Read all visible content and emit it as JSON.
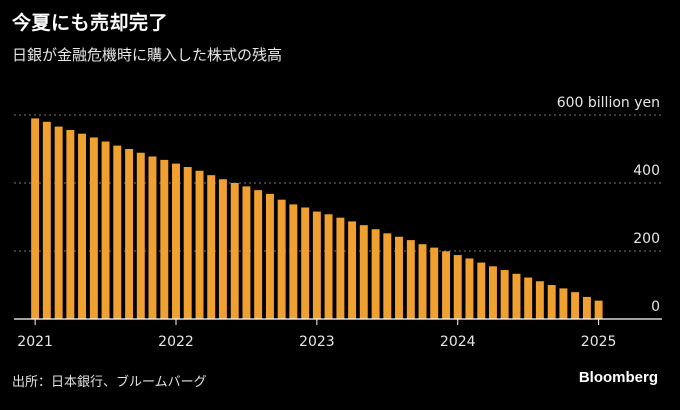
{
  "title": "今夏にも売却完了",
  "subtitle": "日銀が金融危機時に購入した株式の残高",
  "source": "出所：日本銀行、ブルームバーグ",
  "brand": "Bloomberg",
  "colors": {
    "bar": "#f0a030",
    "background": "#000000",
    "grid": "#777777",
    "axis": "#ffffff",
    "text": "#ffffff"
  },
  "chart_data": {
    "type": "bar",
    "unit_label": "600 billion yen",
    "y_tick_labels": [
      "0",
      "200",
      "400",
      "600 billion yen"
    ],
    "y_ticks": [
      0,
      200,
      400,
      600
    ],
    "ylim": [
      0,
      600
    ],
    "x_tick_labels": [
      "2021",
      "2022",
      "2023",
      "2024",
      "2025"
    ],
    "x_ticks": [
      2021,
      2022,
      2023,
      2024,
      2025
    ],
    "xlim": [
      2020.85,
      2025.45
    ],
    "grid": true,
    "series": [
      {
        "x": [
          2021.0,
          2021.083,
          2021.167,
          2021.25,
          2021.333,
          2021.417,
          2021.5,
          2021.583,
          2021.667,
          2021.75,
          2021.833,
          2021.917,
          2022.0,
          2022.083,
          2022.167,
          2022.25,
          2022.333,
          2022.417,
          2022.5,
          2022.583,
          2022.667,
          2022.75,
          2022.833,
          2022.917,
          2023.0,
          2023.083,
          2023.167,
          2023.25,
          2023.333,
          2023.417,
          2023.5,
          2023.583,
          2023.667,
          2023.75,
          2023.833,
          2023.917,
          2024.0,
          2024.083,
          2024.167,
          2024.25,
          2024.333,
          2024.417,
          2024.5,
          2024.583,
          2024.667,
          2024.75,
          2024.833,
          2024.917,
          2025.0
        ],
        "values": [
          590,
          580,
          566,
          556,
          545,
          534,
          522,
          510,
          500,
          489,
          478,
          468,
          457,
          447,
          436,
          423,
          411,
          400,
          390,
          379,
          368,
          351,
          337,
          328,
          316,
          308,
          298,
          287,
          276,
          264,
          252,
          242,
          232,
          220,
          210,
          199,
          188,
          178,
          166,
          155,
          144,
          133,
          122,
          111,
          100,
          90,
          79,
          65,
          54
        ]
      }
    ]
  }
}
